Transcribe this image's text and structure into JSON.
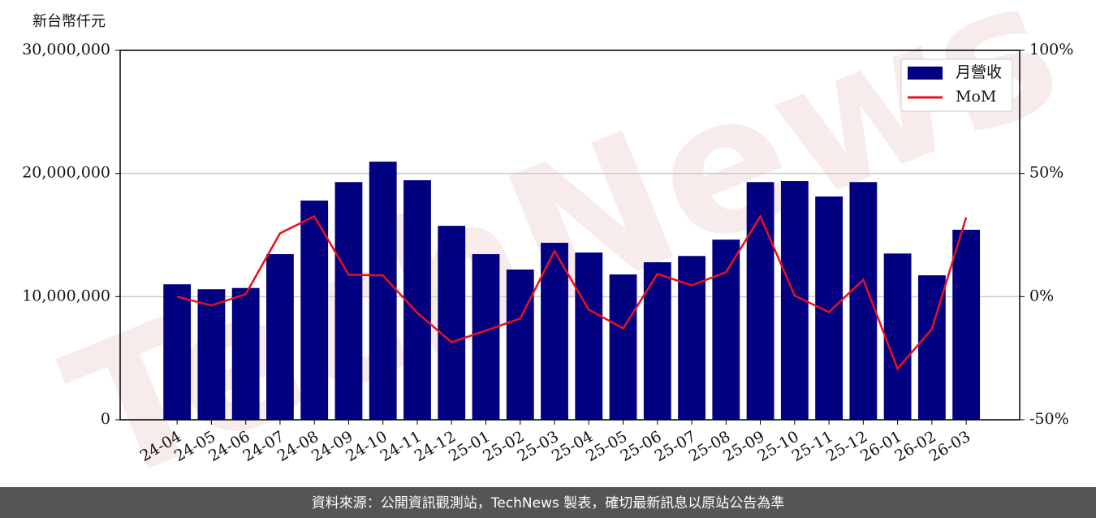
{
  "chart_data": {
    "type": "bar-line",
    "y_label": "新台幣仟元",
    "watermark": "TechNews",
    "footer": "資料來源：公開資訊觀測站，TechNews 製表，確切最新訊息以原站公告為準",
    "categories": [
      "24-04",
      "24-05",
      "24-06",
      "24-07",
      "24-08",
      "24-09",
      "24-10",
      "24-11",
      "24-12",
      "25-01",
      "25-02",
      "25-03",
      "25-04",
      "25-05",
      "25-06",
      "25-07",
      "25-08",
      "25-09",
      "25-10",
      "25-11",
      "25-12",
      "26-01",
      "26-02",
      "26-03"
    ],
    "series": [
      {
        "name": "月營收",
        "color": "#000080",
        "type": "bar",
        "values": [
          11000000,
          10600000,
          10700000,
          13450000,
          17800000,
          19300000,
          20960000,
          19450000,
          15750000,
          13450000,
          12200000,
          14370000,
          13580000,
          11800000,
          12790000,
          13300000,
          14630000,
          19300000,
          19380000,
          18130000,
          19300000,
          13500000,
          11730000,
          15430000
        ]
      },
      {
        "name": "MoM",
        "color": "#e8111b",
        "type": "line",
        "axis": "y2",
        "values": [
          0,
          -3.6,
          1,
          25.7,
          32.6,
          8.9,
          8.6,
          -6.6,
          -18.5,
          -13.8,
          -8.9,
          18.5,
          -5.3,
          -12.9,
          9.2,
          4.6,
          9.9,
          32.6,
          0.4,
          -6.3,
          6.9,
          -29.3,
          -13.1,
          32.2
        ]
      }
    ],
    "ylim": [
      0,
      30000000
    ],
    "yticks": [
      0,
      {
        "value": 10000000,
        "label": "10,000,000"
      },
      {
        "value": 20000000,
        "label": "20,000,000"
      },
      {
        "value": 30000000,
        "label": "30,000,000"
      }
    ],
    "y2lim": [
      -50,
      100
    ],
    "y2ticks": [
      {
        "value": -50,
        "label": "-50%"
      },
      {
        "value": 0,
        "label": "0%"
      },
      {
        "value": 50,
        "label": "50%"
      },
      {
        "value": 100,
        "label": "100%"
      }
    ],
    "grid": true,
    "legend": "upper right"
  }
}
